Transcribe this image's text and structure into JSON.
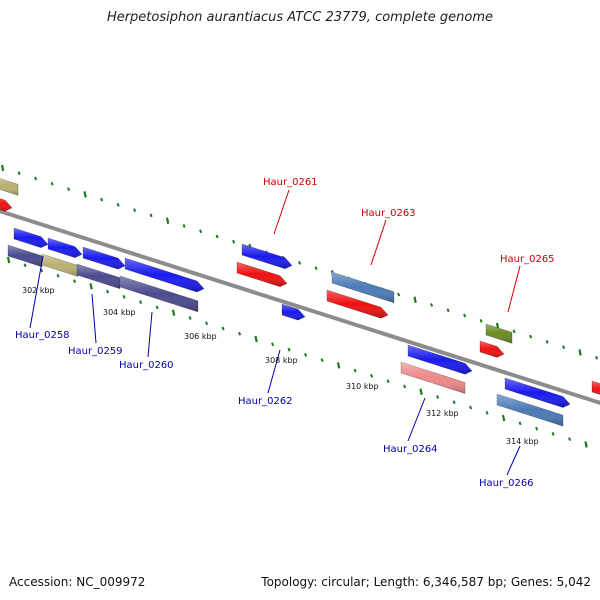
{
  "title": "Herpetosiphon aurantiacus ATCC 23779, complete genome",
  "footer": {
    "accession_label": "Accession:",
    "accession": "NC_009972",
    "topology_label": "Topology:",
    "topology": "circular",
    "length_label": "Length:",
    "length": "6,346,587 bp",
    "genes_label": "Genes:",
    "genes": "5,042"
  },
  "colors": {
    "backbone": "#8c8c8c",
    "tick": "#1a7a1a",
    "forward_label": "#cc0000",
    "reverse_label": "#0000aa",
    "gene_blue": "#1a1aee",
    "gene_red": "#ee1111",
    "gene_slate": "#4a4a90",
    "gene_khaki": "#b8b070",
    "gene_steel": "#4a7ab8",
    "gene_pink": "#ee8888",
    "gene_olive": "#6a8a22"
  },
  "scale_labels": [
    "302 kbp",
    "304 kbp",
    "306 kbp",
    "308 kbp",
    "310 kbp",
    "312 kbp",
    "314 kbp"
  ],
  "forward_gene_labels": [
    "Haur_0261",
    "Haur_0263",
    "Haur_0265"
  ],
  "reverse_gene_labels": [
    "Haur_0258",
    "Haur_0259",
    "Haur_0260",
    "Haur_0262",
    "Haur_0264",
    "Haur_0266"
  ]
}
